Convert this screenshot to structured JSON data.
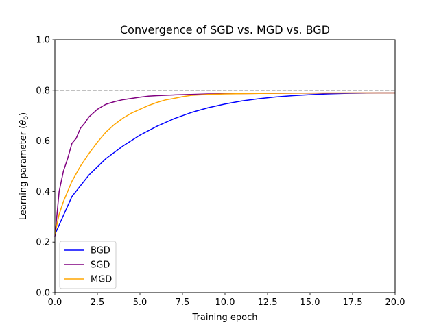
{
  "chart_data": {
    "type": "line",
    "title": "Convergence of SGD vs. MGD vs. BGD",
    "xlabel": "Training epoch",
    "ylabel_main": "Learning parameter (",
    "ylabel_symbol": "θ",
    "ylabel_sub": "0",
    "ylabel_close": ")",
    "xlim": [
      0,
      20
    ],
    "ylim": [
      0,
      1
    ],
    "xticks": [
      "0.0",
      "2.5",
      "5.0",
      "7.5",
      "10.0",
      "12.5",
      "15.0",
      "17.5",
      "20.0"
    ],
    "yticks": [
      "0.0",
      "0.2",
      "0.4",
      "0.6",
      "0.8",
      "1.0"
    ],
    "legend_position": "lower-left",
    "reference_line": {
      "y": 0.8,
      "style": "dashed",
      "color": "#808080"
    },
    "series": [
      {
        "name": "BGD",
        "color": "#0000ff",
        "x": [
          0,
          1,
          2,
          3,
          4,
          5,
          6,
          7,
          8,
          9,
          10,
          11,
          12,
          13,
          14,
          15,
          16,
          17,
          18,
          19,
          20
        ],
        "y": [
          0.23,
          0.38,
          0.465,
          0.53,
          0.58,
          0.623,
          0.658,
          0.688,
          0.712,
          0.731,
          0.746,
          0.758,
          0.767,
          0.774,
          0.779,
          0.783,
          0.786,
          0.788,
          0.789,
          0.79,
          0.79
        ]
      },
      {
        "name": "SGD",
        "color": "#800080",
        "x": [
          0,
          0.25,
          0.5,
          0.75,
          1.0,
          1.25,
          1.5,
          1.75,
          2.0,
          2.25,
          2.5,
          2.75,
          3.0,
          3.5,
          4.0,
          4.5,
          5.0,
          5.5,
          6.0,
          7.0,
          8.0,
          9.0,
          10.0,
          12.0,
          14.0,
          16.0,
          18.0,
          20.0
        ],
        "y": [
          0.22,
          0.4,
          0.48,
          0.53,
          0.59,
          0.61,
          0.65,
          0.67,
          0.695,
          0.71,
          0.725,
          0.735,
          0.745,
          0.755,
          0.763,
          0.768,
          0.773,
          0.777,
          0.779,
          0.782,
          0.784,
          0.786,
          0.787,
          0.788,
          0.789,
          0.789,
          0.79,
          0.79
        ]
      },
      {
        "name": "MGD",
        "color": "#ffa500",
        "x": [
          0,
          0.25,
          0.5,
          0.75,
          1.0,
          1.5,
          2.0,
          2.5,
          3.0,
          3.5,
          4.0,
          4.5,
          5.0,
          5.5,
          6.0,
          6.5,
          7.0,
          7.5,
          8.0,
          9.0,
          10.0,
          12.0,
          14.0,
          16.0,
          18.0,
          20.0
        ],
        "y": [
          0.23,
          0.31,
          0.36,
          0.4,
          0.44,
          0.5,
          0.55,
          0.595,
          0.635,
          0.665,
          0.69,
          0.71,
          0.725,
          0.74,
          0.752,
          0.762,
          0.768,
          0.775,
          0.78,
          0.784,
          0.786,
          0.788,
          0.789,
          0.79,
          0.79,
          0.79
        ]
      }
    ]
  }
}
